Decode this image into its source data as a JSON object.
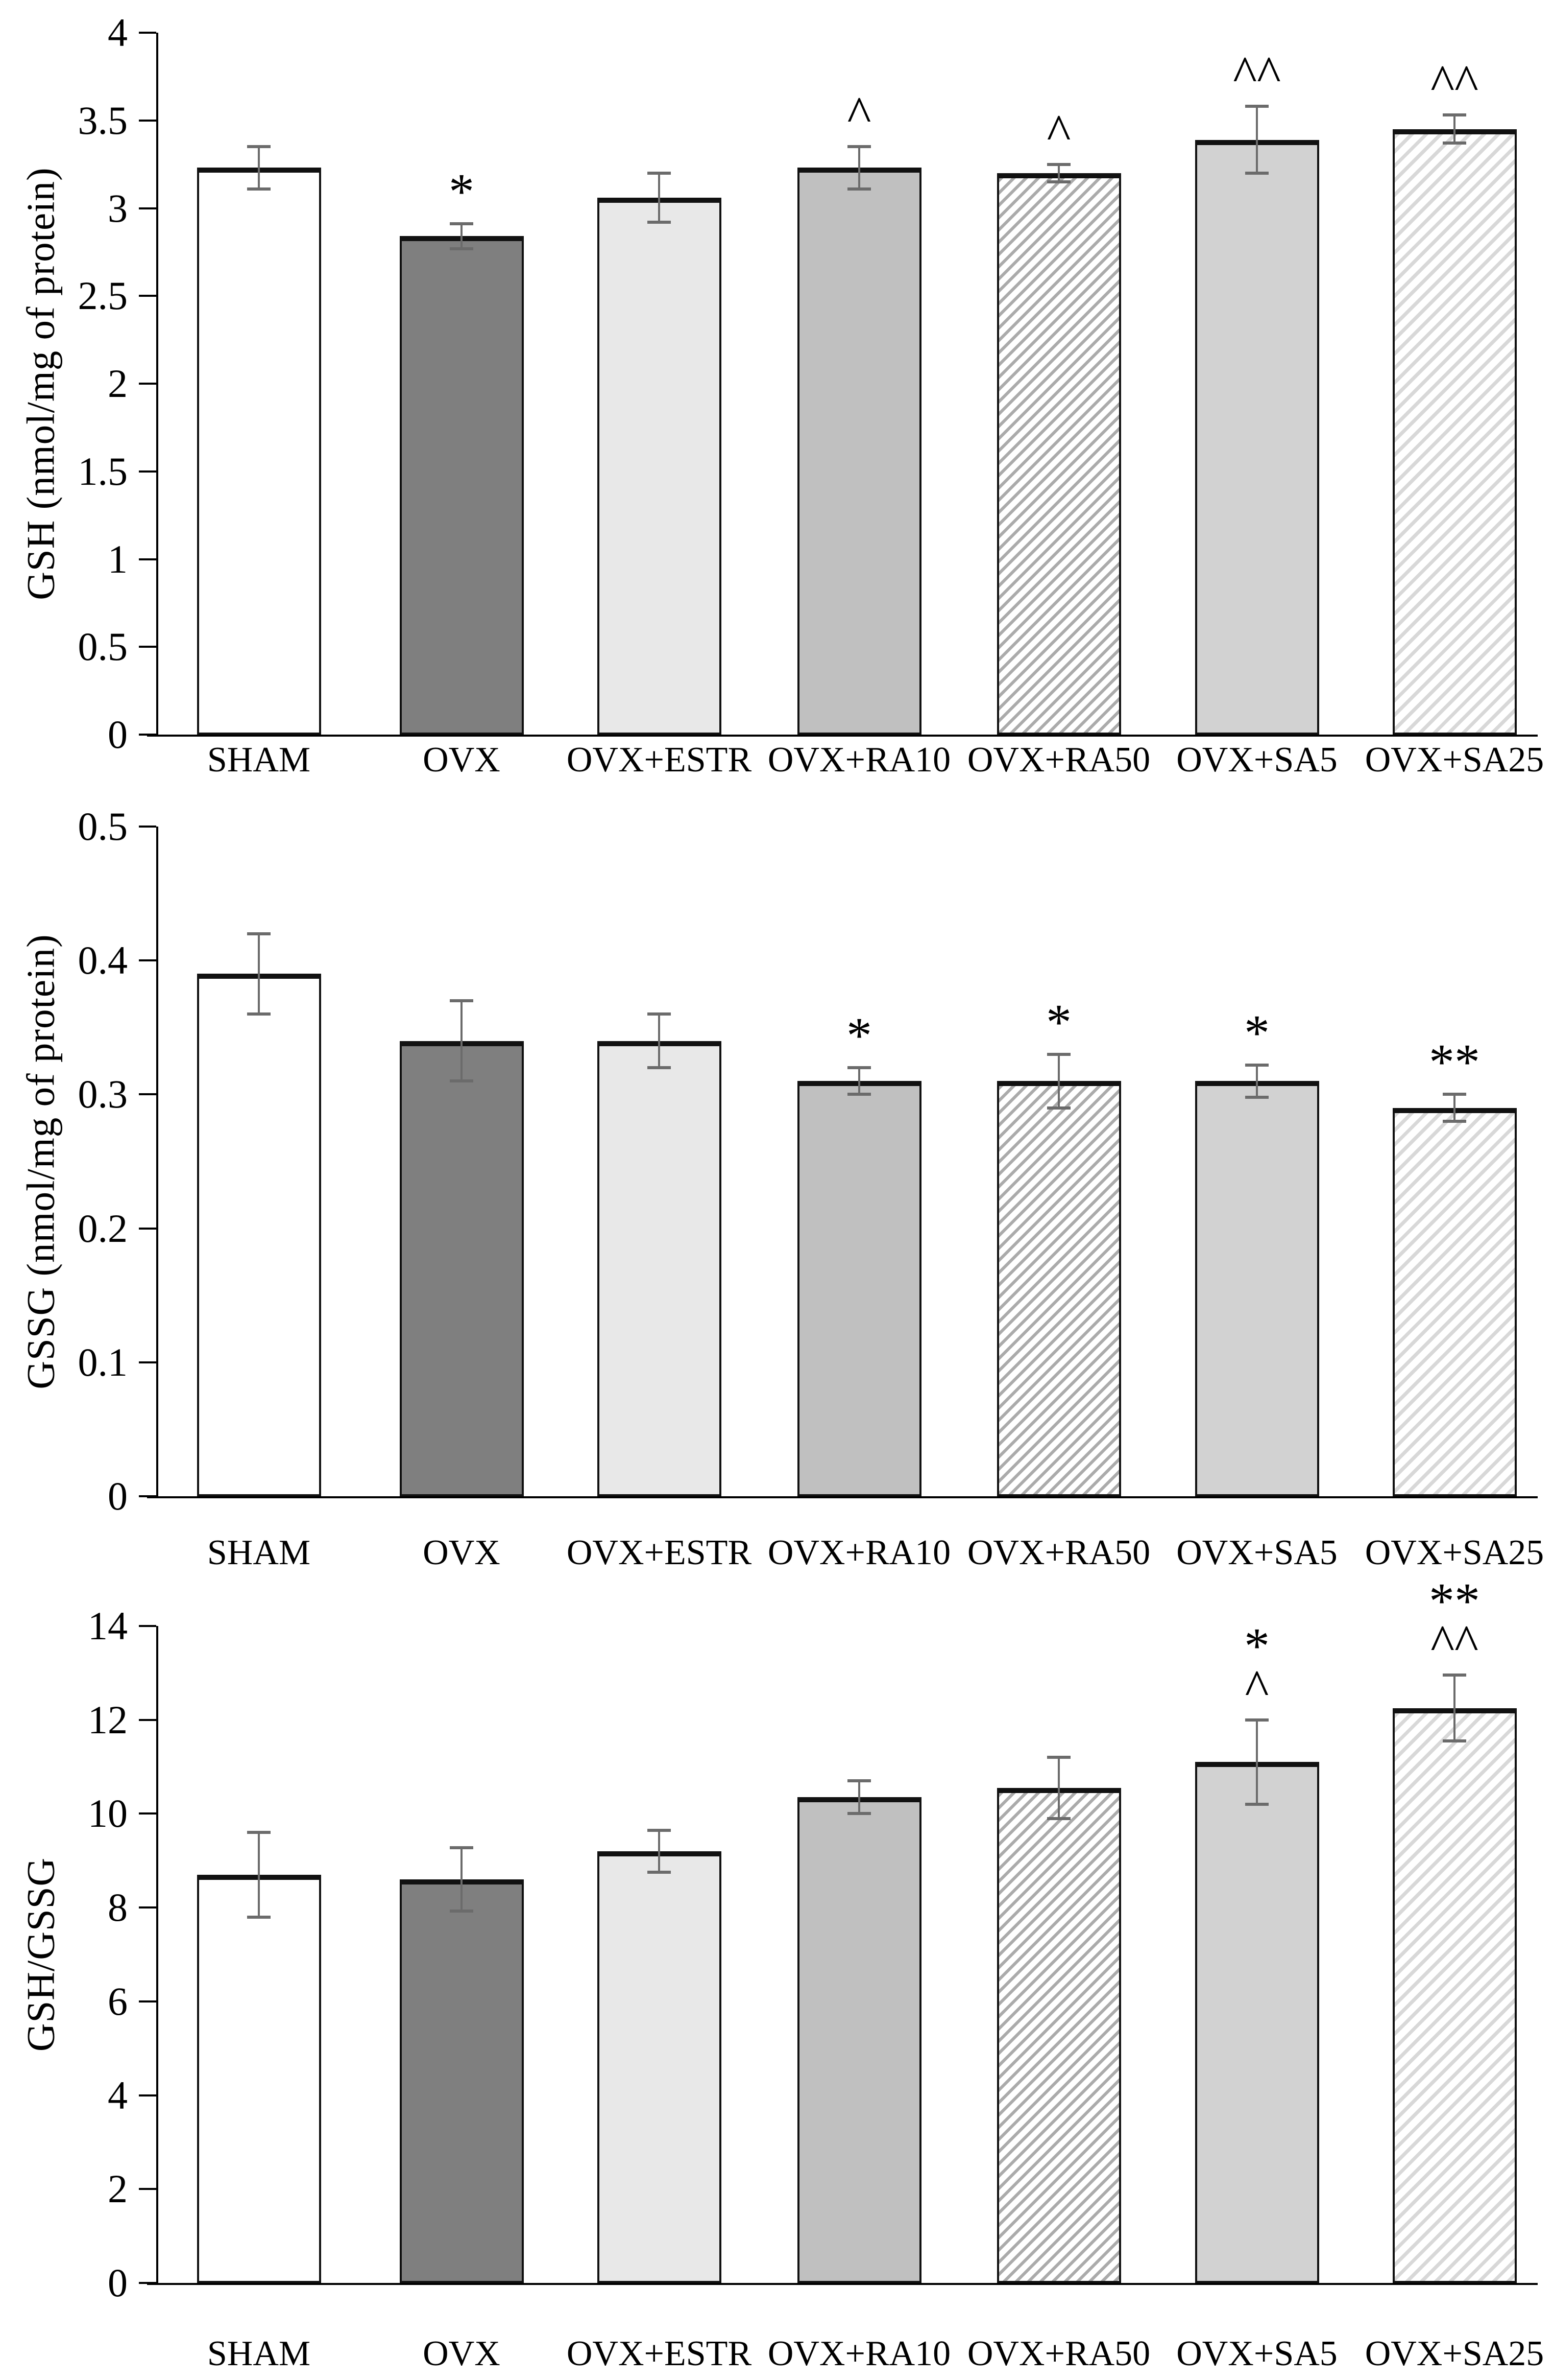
{
  "figure": {
    "description": "Three stacked bar charts of glutathione measurements across treatment groups",
    "background_color": "#ffffff",
    "axis_color": "#000000",
    "error_bar_color": "#6b6b6b",
    "bar_fill_colors": {
      "white": "#ffffff",
      "dark_gray": "#7f7f7f",
      "extra_light_gray": "#e8e8e8",
      "medium_gray": "#c0c0c0",
      "light_gray": "#d2d2d2",
      "hatch_dark_gray": "#ababab",
      "hatch_light_gray": "#d8d8d8"
    }
  },
  "chart_data": [
    {
      "type": "bar",
      "title": "",
      "xlabel": "",
      "ylabel": "GSH (nmol/mg of protein)",
      "ylim": [
        0,
        4
      ],
      "yticks": [
        0,
        0.5,
        1,
        1.5,
        2,
        2.5,
        3,
        3.5,
        4
      ],
      "ytick_labels": [
        "0",
        "0.5",
        "1",
        "1.5",
        "2",
        "2.5",
        "3",
        "3.5",
        "4"
      ],
      "grid": false,
      "legend": "none",
      "categories": [
        "SHAM",
        "OVX",
        "OVX+ESTR",
        "OVX+RA10",
        "OVX+RA50",
        "OVX+SA5",
        "OVX+SA25"
      ],
      "values": [
        3.23,
        2.84,
        3.06,
        3.23,
        3.2,
        3.39,
        3.45
      ],
      "errors": [
        0.12,
        0.07,
        0.14,
        0.12,
        0.05,
        0.19,
        0.08
      ],
      "significance": [
        "",
        "*",
        "",
        "^",
        "^",
        "^^",
        "^^"
      ],
      "bar_styles": [
        "white",
        "dark_gray",
        "extra_light_gray",
        "medium_gray",
        "hatch_dark_gray",
        "light_gray",
        "hatch_light_gray"
      ]
    },
    {
      "type": "bar",
      "title": "",
      "xlabel": "",
      "ylabel": "GSSG (nmol/mg of protein)",
      "ylim": [
        0,
        0.5
      ],
      "yticks": [
        0,
        0.1,
        0.2,
        0.3,
        0.4,
        0.5
      ],
      "ytick_labels": [
        "0",
        "0.1",
        "0.2",
        "0.3",
        "0.4",
        "0.5"
      ],
      "grid": false,
      "legend": "none",
      "categories": [
        "SHAM",
        "OVX",
        "OVX+ESTR",
        "OVX+RA10",
        "OVX+RA50",
        "OVX+SA5",
        "OVX+SA25"
      ],
      "values": [
        0.39,
        0.34,
        0.34,
        0.31,
        0.31,
        0.31,
        0.29
      ],
      "errors": [
        0.03,
        0.03,
        0.02,
        0.01,
        0.02,
        0.012,
        0.01
      ],
      "significance": [
        "",
        "",
        "",
        "*",
        "*",
        "*",
        "**"
      ],
      "bar_styles": [
        "white",
        "dark_gray",
        "extra_light_gray",
        "medium_gray",
        "hatch_dark_gray",
        "light_gray",
        "hatch_light_gray"
      ]
    },
    {
      "type": "bar",
      "title": "",
      "xlabel": "",
      "ylabel": "GSH/GSSG",
      "ylim": [
        0,
        14
      ],
      "yticks": [
        0,
        2,
        4,
        6,
        8,
        10,
        12,
        14
      ],
      "ytick_labels": [
        "0",
        "2",
        "4",
        "6",
        "8",
        "10",
        "12",
        "14"
      ],
      "grid": false,
      "legend": "none",
      "categories": [
        "SHAM",
        "OVX",
        "OVX+ESTR",
        "OVX+RA10",
        "OVX+RA50",
        "OVX+SA5",
        "OVX+SA25"
      ],
      "values": [
        8.7,
        8.6,
        9.2,
        10.35,
        10.55,
        11.1,
        12.25
      ],
      "errors": [
        0.9,
        0.68,
        0.45,
        0.35,
        0.65,
        0.9,
        0.7
      ],
      "significance": [
        "",
        "",
        "",
        "",
        "",
        "*|^",
        "**|^^"
      ],
      "bar_styles": [
        "white",
        "dark_gray",
        "extra_light_gray",
        "medium_gray",
        "hatch_dark_gray",
        "light_gray",
        "hatch_light_gray"
      ]
    }
  ]
}
